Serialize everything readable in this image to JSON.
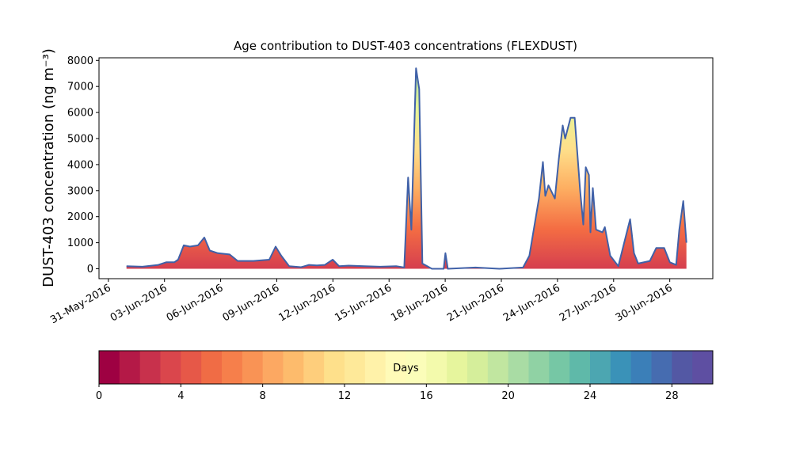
{
  "chart_data": {
    "type": "area",
    "title": "Age contribution to DUST-403 concentrations (FLEXDUST)",
    "y_label": "DUST-403 concentration (ng m⁻³)",
    "x": [
      0.97,
      1.82,
      2.67,
      3.09,
      3.52,
      3.73,
      4.03,
      4.36,
      4.79,
      5.13,
      5.42,
      5.85,
      6.48,
      6.91,
      7.75,
      8.6,
      8.94,
      9.24,
      9.66,
      10.3,
      10.72,
      11.14,
      11.57,
      11.99,
      12.33,
      12.84,
      13.69,
      14.53,
      15.38,
      15.81,
      16.02,
      16.19,
      16.44,
      16.61,
      16.78,
      17.29,
      17.92,
      18.01,
      18.14,
      19.62,
      20.89,
      22.16,
      22.5,
      23.01,
      23.22,
      23.35,
      23.52,
      23.86,
      24.07,
      24.28,
      24.41,
      24.7,
      24.92,
      25.21,
      25.38,
      25.51,
      25.68,
      25.76,
      25.89,
      26.06,
      26.4,
      26.53,
      26.82,
      27.25,
      27.67,
      27.88,
      28.09,
      28.31,
      28.94,
      29.28,
      29.7,
      30.0,
      30.34,
      30.51,
      30.72,
      30.89
    ],
    "series": [
      {
        "color": "#4061a8",
        "fill_gradient": [
          "#d53e4f",
          "#f46d43",
          "#fdae61",
          "#fee08b",
          "#e6f598",
          "#abdda4"
        ],
        "values": [
          100,
          80,
          150,
          250,
          250,
          350,
          900,
          850,
          900,
          1200,
          700,
          600,
          550,
          300,
          300,
          350,
          850,
          500,
          100,
          60,
          150,
          130,
          150,
          350,
          100,
          120,
          100,
          80,
          100,
          50,
          3500,
          1500,
          7700,
          6900,
          200,
          0,
          0,
          600,
          0,
          50,
          0,
          50,
          500,
          2700,
          4100,
          2800,
          3200,
          2700,
          4200,
          5500,
          5000,
          5800,
          5800,
          3000,
          1700,
          3900,
          3600,
          1400,
          3100,
          1500,
          1400,
          1600,
          500,
          100,
          1300,
          1900,
          600,
          200,
          300,
          800,
          800,
          250,
          150,
          1500,
          2600,
          1000
        ]
      }
    ],
    "xlim": [
      -0.5,
      32.3
    ],
    "xticks": [
      {
        "value": 0,
        "label": "31-May-2016"
      },
      {
        "value": 3,
        "label": "03-Jun-2016"
      },
      {
        "value": 6,
        "label": "06-Jun-2016"
      },
      {
        "value": 9,
        "label": "09-Jun-2016"
      },
      {
        "value": 12,
        "label": "12-Jun-2016"
      },
      {
        "value": 15,
        "label": "15-Jun-2016"
      },
      {
        "value": 18,
        "label": "18-Jun-2016"
      },
      {
        "value": 21,
        "label": "21-Jun-2016"
      },
      {
        "value": 24,
        "label": "24-Jun-2016"
      },
      {
        "value": 27,
        "label": "27-Jun-2016"
      },
      {
        "value": 30,
        "label": "30-Jun-2016"
      }
    ],
    "ylim": [
      -380,
      8100
    ],
    "yticks": [
      0,
      1000,
      2000,
      3000,
      4000,
      5000,
      6000,
      7000,
      8000
    ],
    "colorbar": {
      "label": "Days",
      "lim": [
        0,
        30
      ],
      "ticks": [
        0,
        4,
        8,
        12,
        16,
        20,
        24,
        28
      ],
      "colors": [
        "#9e0142",
        "#b41947",
        "#c8314c",
        "#da464c",
        "#e65848",
        "#f06c45",
        "#f67f4b",
        "#f99355",
        "#fca862",
        "#fdbb6c",
        "#fece7c",
        "#fee08b",
        "#fee999",
        "#fff2a9",
        "#fffbb8",
        "#fbfdb9",
        "#f3faac",
        "#e6f59d",
        "#d5ee9b",
        "#c1e6a0",
        "#a9dca4",
        "#90d2a4",
        "#76c7a5",
        "#5fb9a9",
        "#4ca6b1",
        "#3a92b8",
        "#3b7fb8",
        "#466cb0",
        "#5358a4",
        "#5e4fa2"
      ]
    }
  }
}
